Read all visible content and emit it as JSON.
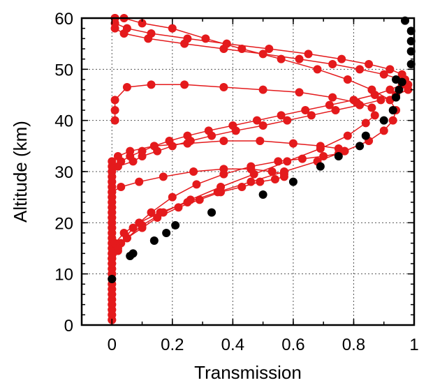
{
  "chart_data": {
    "type": "scatter",
    "title": "",
    "xlabel": "Transmission",
    "ylabel": "Altitude (km)",
    "xlim": [
      -0.1,
      1.0
    ],
    "ylim": [
      0,
      60
    ],
    "x_ticks": [
      "0",
      "0.2",
      "0.4",
      "0.6",
      "0.8",
      "1"
    ],
    "x_tick_values": [
      0,
      0.2,
      0.4,
      0.6,
      0.8,
      1.0
    ],
    "y_ticks": [
      "0",
      "10",
      "20",
      "30",
      "40",
      "50",
      "60"
    ],
    "y_tick_values": [
      0,
      10,
      20,
      30,
      40,
      50,
      60
    ],
    "grid": true,
    "series": [
      {
        "color": "#e41a1c",
        "style": "line+markers",
        "x": [
          0.0,
          0.0,
          0.0,
          0.0,
          0.0,
          0.0,
          0.0,
          0.0,
          0.0,
          0.0,
          0.0,
          0.0,
          0.0,
          0.0,
          0.0,
          0.0,
          0.0,
          0.0,
          0.0,
          0.0,
          0.0,
          0.0,
          0.0,
          0.0,
          0.0,
          0.0,
          0.0,
          0.0,
          0.0,
          0.0,
          0.02,
          0.07,
          0.1,
          0.15,
          0.2,
          0.26,
          0.33,
          0.41,
          0.5,
          0.58,
          0.66,
          0.74,
          0.82,
          0.89,
          0.94,
          0.98,
          0.98,
          0.96,
          0.9,
          0.82,
          0.73,
          0.62,
          0.5,
          0.37,
          0.24,
          0.12,
          0.04,
          0.01,
          0.01,
          0.01
        ],
        "y": [
          1.0,
          2.0,
          3.0,
          4.0,
          5.0,
          6.0,
          7.0,
          8.0,
          9.0,
          10.0,
          11.0,
          12.0,
          13.0,
          14.0,
          15.0,
          16.0,
          17.0,
          18.0,
          19.0,
          20.0,
          21.0,
          22.0,
          23.0,
          24.0,
          25.0,
          26.0,
          27.0,
          28.0,
          29.0,
          30.0,
          31.0,
          32.0,
          33.0,
          34.0,
          35.0,
          36.0,
          37.0,
          38.0,
          39.0,
          40.0,
          41.0,
          42.0,
          43.0,
          44.0,
          45.0,
          46.0,
          47.0,
          48.0,
          49.0,
          50.0,
          51.0,
          52.0,
          53.0,
          54.0,
          55.0,
          56.0,
          57.0,
          58.0,
          59.0,
          60.0
        ]
      },
      {
        "color": "#e41a1c",
        "style": "line+markers",
        "x": [
          0.0,
          0.0,
          0.0,
          0.0,
          0.0,
          0.0,
          0.0,
          0.0,
          0.0,
          0.0,
          0.0,
          0.0,
          0.0,
          0.0,
          0.0,
          0.0,
          0.0,
          0.0,
          0.0,
          0.0,
          0.0,
          0.0,
          0.0,
          0.0,
          0.0,
          0.0,
          0.0,
          0.0,
          0.0,
          0.0,
          0.0,
          0.03,
          0.06,
          0.1,
          0.14,
          0.19,
          0.25,
          0.32,
          0.4,
          0.48,
          0.56,
          0.64,
          0.72,
          0.8,
          0.87,
          0.92,
          0.96,
          0.97,
          0.96,
          0.92,
          0.85,
          0.76,
          0.65,
          0.52,
          0.38,
          0.25,
          0.13,
          0.05,
          0.01,
          0.01
        ],
        "y": [
          1.0,
          2.0,
          3.0,
          4.0,
          5.0,
          6.0,
          7.0,
          8.0,
          9.0,
          10.0,
          11.0,
          12.0,
          13.0,
          14.0,
          15.0,
          16.0,
          17.0,
          18.0,
          19.0,
          20.0,
          21.0,
          22.0,
          23.0,
          24.0,
          25.0,
          26.0,
          27.0,
          28.0,
          29.0,
          30.0,
          31.0,
          32.0,
          33.0,
          34.0,
          35.0,
          36.0,
          37.0,
          38.0,
          39.0,
          40.0,
          41.0,
          42.0,
          43.0,
          44.0,
          45.0,
          46.0,
          47.0,
          48.0,
          49.0,
          50.0,
          51.0,
          52.0,
          53.0,
          54.0,
          55.0,
          56.0,
          57.0,
          58.0,
          59.0,
          60.0
        ]
      },
      {
        "color": "#e41a1c",
        "style": "line+markers",
        "x": [
          0.0,
          0.01,
          0.04,
          0.09,
          0.16,
          0.25,
          0.35,
          0.46,
          0.57,
          0.68,
          0.77,
          0.85,
          0.9,
          0.93,
          0.94,
          0.92,
          0.86,
          0.78,
          0.68,
          0.56,
          0.43,
          0.31,
          0.2,
          0.1,
          0.04,
          0.01
        ],
        "y": [
          14.0,
          16.0,
          18.0,
          20.0,
          22.0,
          24.0,
          26.0,
          28.0,
          30.0,
          32.0,
          34.0,
          36.0,
          38.0,
          40.0,
          42.0,
          44.0,
          46.0,
          48.0,
          50.0,
          52.0,
          54.0,
          56.0,
          58.0,
          59.0,
          60.0,
          60.0
        ]
      },
      {
        "color": "#e41a1c",
        "style": "line+markers",
        "x": [
          0.0,
          0.02,
          0.05,
          0.1,
          0.17,
          0.26,
          0.36,
          0.47,
          0.58,
          0.69,
          0.78,
          0.84,
          0.87,
          0.86,
          0.81,
          0.73,
          0.62,
          0.5,
          0.37,
          0.24,
          0.13,
          0.05,
          0.01,
          0.01,
          0.01
        ],
        "y": [
          12.0,
          14.5,
          17.0,
          19.5,
          22.0,
          24.5,
          27.0,
          29.5,
          32.0,
          34.5,
          37.0,
          39.5,
          41.0,
          42.5,
          43.5,
          44.5,
          45.5,
          46.0,
          46.5,
          47.0,
          47.0,
          46.5,
          44.0,
          42.0,
          40.0
        ]
      },
      {
        "color": "#e41a1c",
        "style": "line+markers",
        "x": [
          0.0,
          0.03,
          0.07,
          0.13,
          0.2,
          0.28,
          0.37,
          0.46,
          0.55,
          0.63,
          0.7,
          0.75,
          0.77,
          0.75,
          0.69,
          0.6,
          0.49,
          0.37,
          0.25,
          0.14,
          0.06,
          0.02,
          0.0
        ],
        "y": [
          13.0,
          16.0,
          19.0,
          22.0,
          25.0,
          27.5,
          29.5,
          31.0,
          32.0,
          32.5,
          33.0,
          33.5,
          34.0,
          34.5,
          35.0,
          35.5,
          36.0,
          36.0,
          35.5,
          35.0,
          34.0,
          33.0,
          32.0
        ]
      },
      {
        "color": "#e41a1c",
        "style": "line+markers",
        "x": [
          0.0,
          0.02,
          0.05,
          0.1,
          0.15,
          0.22,
          0.29,
          0.36,
          0.43,
          0.49,
          0.54,
          0.57,
          0.57,
          0.53,
          0.46,
          0.37,
          0.27,
          0.17,
          0.09,
          0.03,
          0.0
        ],
        "y": [
          13.0,
          15.0,
          17.0,
          19.0,
          21.0,
          23.0,
          24.5,
          26.0,
          27.0,
          28.0,
          28.5,
          29.0,
          29.5,
          30.0,
          30.5,
          30.5,
          30.0,
          29.0,
          28.0,
          27.0,
          26.0
        ]
      }
    ],
    "envelope": {
      "color": "#000000",
      "style": "markers",
      "x": [
        0.0,
        0.06,
        0.07,
        0.14,
        0.18,
        0.21,
        0.33,
        0.5,
        0.6,
        0.69,
        0.75,
        0.82,
        0.84,
        0.9,
        0.93,
        0.94,
        0.95,
        0.96,
        0.94,
        0.99,
        0.99,
        0.99,
        0.99,
        0.97
      ],
      "y": [
        9.0,
        13.5,
        14.0,
        16.5,
        18.0,
        19.5,
        22.0,
        25.5,
        28.0,
        31.0,
        33.0,
        35.0,
        37.0,
        40.0,
        42.0,
        44.5,
        46.0,
        47.5,
        48.0,
        51.0,
        53.5,
        55.5,
        57.5,
        59.5
      ]
    }
  }
}
